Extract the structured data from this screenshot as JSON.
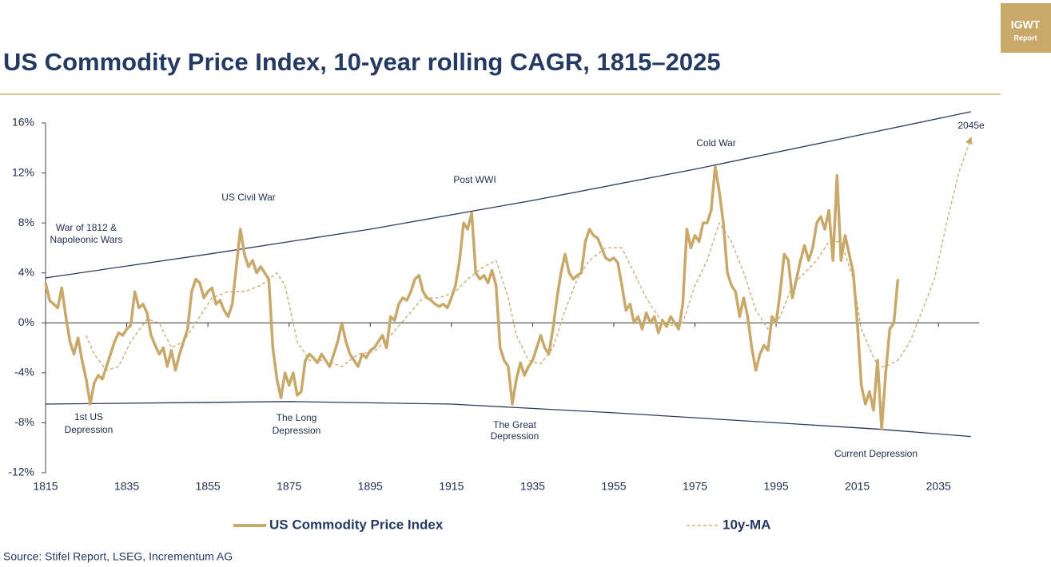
{
  "chart_data": {
    "type": "line",
    "title": "US Commodity Price Index, 10-year rolling CAGR, 1815–2025",
    "badge": [
      "IGWT",
      "Report"
    ],
    "source": "Source: Stifel Report, LSEG, Incrementum AG",
    "xlim": [
      1815,
      2045
    ],
    "xticks": [
      1815,
      1835,
      1855,
      1875,
      1895,
      1915,
      1935,
      1955,
      1975,
      1995,
      2015,
      2035
    ],
    "ylim": [
      -12,
      16
    ],
    "yticks": [
      {
        "value": -12,
        "label": "-12%"
      },
      {
        "value": -8,
        "label": "-8%"
      },
      {
        "value": -4,
        "label": "-4%"
      },
      {
        "value": 0,
        "label": "0%"
      },
      {
        "value": 4,
        "label": "4%"
      },
      {
        "value": 8,
        "label": "8%"
      },
      {
        "value": 12,
        "label": "12%"
      },
      {
        "value": 16,
        "label": "16%"
      }
    ],
    "annotations": [
      [
        "War of 1812 &",
        "Napoleonic Wars"
      ],
      [
        "US Civil War"
      ],
      [
        "Post WWI"
      ],
      [
        "Cold War"
      ],
      [
        "2045e"
      ],
      [
        "1st US",
        "Depression"
      ],
      [
        "The Long",
        "Depression"
      ],
      [
        "The Great",
        "Depression"
      ],
      [
        "Current Depression"
      ]
    ],
    "series": [
      {
        "name": "US Commodity Price Index",
        "color": "#c8a96a",
        "dashed": false,
        "x": [
          1815,
          1816,
          1817,
          1818,
          1819,
          1820,
          1821,
          1822,
          1823,
          1824,
          1825,
          1826,
          1827,
          1828,
          1829,
          1830,
          1831,
          1832,
          1833,
          1834,
          1835,
          1836,
          1837,
          1838,
          1839,
          1840,
          1841,
          1842,
          1843,
          1844,
          1845,
          1846,
          1847,
          1848,
          1849,
          1850,
          1851,
          1852,
          1853,
          1854,
          1855,
          1856,
          1857,
          1858,
          1859,
          1860,
          1861,
          1862,
          1863,
          1864,
          1865,
          1866,
          1867,
          1868,
          1869,
          1870,
          1871,
          1872,
          1873,
          1874,
          1875,
          1876,
          1877,
          1878,
          1879,
          1880,
          1881,
          1882,
          1883,
          1884,
          1885,
          1886,
          1887,
          1888,
          1889,
          1890,
          1891,
          1892,
          1893,
          1894,
          1895,
          1896,
          1897,
          1898,
          1899,
          1900,
          1901,
          1902,
          1903,
          1904,
          1905,
          1906,
          1907,
          1908,
          1909,
          1910,
          1911,
          1912,
          1913,
          1914,
          1915,
          1916,
          1917,
          1918,
          1919,
          1920,
          1921,
          1922,
          1923,
          1924,
          1925,
          1926,
          1927,
          1928,
          1929,
          1930,
          1931,
          1932,
          1933,
          1934,
          1935,
          1936,
          1937,
          1938,
          1939,
          1940,
          1941,
          1942,
          1943,
          1944,
          1945,
          1946,
          1947,
          1948,
          1949,
          1950,
          1951,
          1952,
          1953,
          1954,
          1955,
          1956,
          1957,
          1958,
          1959,
          1960,
          1961,
          1962,
          1963,
          1964,
          1965,
          1966,
          1967,
          1968,
          1969,
          1970,
          1971,
          1972,
          1973,
          1974,
          1975,
          1976,
          1977,
          1978,
          1979,
          1980,
          1981,
          1982,
          1983,
          1984,
          1985,
          1986,
          1987,
          1988,
          1989,
          1990,
          1991,
          1992,
          1993,
          1994,
          1995,
          1996,
          1997,
          1998,
          1999,
          2000,
          2001,
          2002,
          2003,
          2004,
          2005,
          2006,
          2007,
          2008,
          2009,
          2010,
          2011,
          2012,
          2013,
          2014,
          2015,
          2016,
          2017,
          2018,
          2019,
          2020,
          2021,
          2022,
          2023,
          2024,
          2025
        ],
        "values": [
          3.2,
          1.8,
          1.5,
          1.2,
          2.8,
          0.5,
          -1.5,
          -2.5,
          -1.2,
          -3,
          -4.5,
          -6.5,
          -4.8,
          -4.2,
          -4.5,
          -3.5,
          -2.5,
          -1.5,
          -0.8,
          -1,
          -0.5,
          -0.2,
          2.5,
          1.2,
          1.5,
          0.8,
          -1,
          -1.8,
          -2.5,
          -2,
          -3.5,
          -2.2,
          -3.8,
          -2.5,
          -1.5,
          -0.5,
          2.5,
          3.5,
          3.2,
          2,
          2.5,
          2.8,
          1.5,
          1.8,
          1,
          0.5,
          1.5,
          4.5,
          7.5,
          5.5,
          4.5,
          5,
          4,
          4.5,
          4,
          3.5,
          -2,
          -4.5,
          -6,
          -4,
          -5,
          -4,
          -5.8,
          -5.5,
          -3,
          -2.5,
          -2.8,
          -3.2,
          -2.5,
          -3,
          -3.5,
          -2.5,
          -1.5,
          0,
          -1.5,
          -2.5,
          -3,
          -3.5,
          -2.5,
          -2.8,
          -2.2,
          -2,
          -1.5,
          -1,
          -2,
          0.5,
          0.2,
          1.5,
          2,
          1.8,
          2.5,
          3.5,
          3.8,
          2.5,
          2,
          1.8,
          1.5,
          1.3,
          1.5,
          1.2,
          2,
          3,
          5,
          8,
          7.5,
          8.8,
          4,
          3.5,
          3.8,
          3.2,
          4.2,
          3,
          -2,
          -3,
          -3.5,
          -6.5,
          -4.5,
          -3.2,
          -4.2,
          -3.5,
          -3,
          -2,
          -1,
          -2,
          -2.5,
          -0.5,
          2,
          4,
          5.5,
          4,
          3.5,
          3.8,
          4,
          6.5,
          7.5,
          7,
          6.8,
          6,
          5.2,
          5,
          5.2,
          4.8,
          3,
          1,
          1.5,
          0,
          0.5,
          -0.5,
          0.8,
          0,
          0.5,
          -0.8,
          0.2,
          -0.3,
          0.5,
          0,
          -0.5,
          1.5,
          7.5,
          6,
          7,
          6.5,
          8,
          8,
          9,
          12.5,
          10.5,
          8,
          4,
          3,
          2.5,
          0.5,
          2,
          0.5,
          -2,
          -3.8,
          -2.5,
          -1.8,
          -2.2,
          0.5,
          0,
          2.5,
          5.5,
          5,
          2,
          3.5,
          5,
          6.2,
          5,
          6,
          8,
          8.5,
          7.5,
          9,
          5,
          11.8,
          5,
          7,
          5.5,
          4,
          0,
          -5,
          -6.5,
          -5.5,
          -7,
          -3,
          -8.5,
          -4,
          -0.5,
          0,
          3.5
        ]
      },
      {
        "name": "10y-MA",
        "color": "#c8a96a",
        "dashed": true,
        "x": [
          1825,
          1827,
          1830,
          1833,
          1836,
          1840,
          1843,
          1846,
          1849,
          1852,
          1856,
          1860,
          1864,
          1868,
          1872,
          1874,
          1877,
          1880,
          1884,
          1888,
          1892,
          1896,
          1900,
          1904,
          1908,
          1912,
          1916,
          1919,
          1923,
          1926,
          1929,
          1931,
          1934,
          1937,
          1940,
          1943,
          1946,
          1949,
          1953,
          1957,
          1960,
          1963,
          1966,
          1969,
          1972,
          1975,
          1978,
          1981,
          1984,
          1987,
          1990,
          1993,
          1996,
          1999,
          2002,
          2005,
          2008,
          2011,
          2014,
          2016,
          2018,
          2020,
          2022,
          2025,
          2028,
          2031,
          2034,
          2037,
          2040,
          2043
        ],
        "values": [
          -1,
          -2.5,
          -3.8,
          -3.5,
          -1.5,
          0.3,
          0,
          -2,
          -1.5,
          0,
          2,
          2.5,
          2.5,
          3,
          4,
          3,
          -1.5,
          -3,
          -3,
          -3.5,
          -2.5,
          -2.3,
          -1,
          0.5,
          2,
          2,
          2.5,
          3.5,
          4.5,
          5,
          2,
          -1,
          -3,
          -3.3,
          -2,
          1,
          3.5,
          5,
          6,
          6,
          4,
          2,
          0.5,
          -0.2,
          0,
          3,
          5,
          8,
          6.5,
          4,
          1,
          -0.5,
          0.5,
          3,
          4,
          5,
          6.5,
          6.5,
          3.5,
          -0.5,
          -2,
          -3.5,
          -3.5,
          -3,
          -1.5,
          1,
          3.5,
          8,
          12,
          14.8
        ]
      }
    ],
    "trend_lines": [
      {
        "color": "#2b3a5c",
        "x": [
          1815,
          1855,
          1895,
          1935,
          1975,
          2015,
          2043
        ],
        "values": [
          3.6,
          5.5,
          7.5,
          9.8,
          12.3,
          15,
          16.9
        ]
      },
      {
        "color": "#2b3a5c",
        "x": [
          1815,
          1875,
          1915,
          1955,
          1995,
          2020,
          2043
        ],
        "values": [
          -6.5,
          -6.3,
          -6.5,
          -7.2,
          -8,
          -8.5,
          -9.1
        ]
      }
    ]
  }
}
